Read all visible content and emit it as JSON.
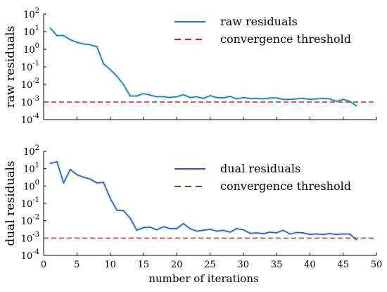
{
  "chart_data": [
    {
      "type": "line",
      "ylabel": "raw residuals",
      "yscale": "log",
      "ylim": [
        0.0001,
        100
      ],
      "xlim": [
        0,
        50
      ],
      "x_tick_labels_shown": false,
      "y_ticks": [
        {
          "value": 100,
          "mantissa": "10",
          "exp": "2"
        },
        {
          "value": 10,
          "mantissa": "10",
          "exp": "1"
        },
        {
          "value": 1,
          "mantissa": "10",
          "exp": "0"
        },
        {
          "value": 0.1,
          "mantissa": "10",
          "exp": "-1"
        },
        {
          "value": 0.01,
          "mantissa": "10",
          "exp": "-2"
        },
        {
          "value": 0.001,
          "mantissa": "10",
          "exp": "-3"
        },
        {
          "value": 0.0001,
          "mantissa": "10",
          "exp": "-4"
        }
      ],
      "legend_position": "top-right",
      "series": [
        {
          "name": "raw residuals",
          "color": "#1f77b4",
          "style": "solid",
          "x": [
            1,
            2,
            3,
            4,
            5,
            6,
            7,
            8,
            9,
            10,
            11,
            12,
            13,
            14,
            15,
            16,
            17,
            18,
            19,
            20,
            21,
            22,
            23,
            24,
            25,
            26,
            27,
            28,
            29,
            30,
            31,
            32,
            33,
            34,
            35,
            36,
            37,
            38,
            39,
            40,
            41,
            42,
            43,
            44,
            45,
            46,
            47
          ],
          "y": [
            16,
            6,
            6,
            3.5,
            2.5,
            2,
            1.8,
            1.4,
            0.15,
            0.07,
            0.03,
            0.01,
            0.0022,
            0.0022,
            0.003,
            0.0025,
            0.002,
            0.002,
            0.0018,
            0.002,
            0.0026,
            0.0018,
            0.002,
            0.0016,
            0.0023,
            0.0018,
            0.0017,
            0.0021,
            0.0015,
            0.0018,
            0.0016,
            0.0016,
            0.0015,
            0.0017,
            0.0017,
            0.0014,
            0.0014,
            0.0015,
            0.0016,
            0.0014,
            0.0015,
            0.0016,
            0.0015,
            0.0011,
            0.0014,
            0.0011,
            0.0006
          ]
        },
        {
          "name": "convergence threshold",
          "color": "#e31a1c",
          "style": "dashed",
          "x": [
            0,
            50
          ],
          "y": [
            0.001,
            0.001
          ]
        }
      ]
    },
    {
      "type": "line",
      "ylabel": "dual residuals",
      "xlabel": "number of iterations",
      "yscale": "log",
      "ylim": [
        0.0001,
        100
      ],
      "xlim": [
        0,
        50
      ],
      "x_ticks": [
        0,
        5,
        10,
        15,
        20,
        25,
        30,
        35,
        40,
        45,
        50
      ],
      "y_ticks": [
        {
          "value": 100,
          "mantissa": "10",
          "exp": "2"
        },
        {
          "value": 10,
          "mantissa": "10",
          "exp": "1"
        },
        {
          "value": 1,
          "mantissa": "10",
          "exp": "0"
        },
        {
          "value": 0.1,
          "mantissa": "10",
          "exp": "-1"
        },
        {
          "value": 0.01,
          "mantissa": "10",
          "exp": "-2"
        },
        {
          "value": 0.001,
          "mantissa": "10",
          "exp": "-3"
        },
        {
          "value": 0.0001,
          "mantissa": "10",
          "exp": "-4"
        }
      ],
      "legend_position": "center-right",
      "series": [
        {
          "name": "dual residuals",
          "color": "#3355cc",
          "style": "solid",
          "x": [
            1,
            2,
            3,
            4,
            5,
            6,
            7,
            8,
            9,
            10,
            11,
            12,
            13,
            14,
            15,
            16,
            17,
            18,
            19,
            20,
            21,
            22,
            23,
            24,
            25,
            26,
            27,
            28,
            29,
            30,
            31,
            32,
            33,
            34,
            35,
            36,
            37,
            38,
            39,
            40,
            41,
            42,
            43,
            44,
            45,
            46,
            47
          ],
          "y": [
            20,
            25,
            1.5,
            9,
            4.5,
            3.2,
            2.5,
            1.5,
            1.6,
            0.2,
            0.04,
            0.038,
            0.014,
            0.0028,
            0.004,
            0.0042,
            0.003,
            0.0045,
            0.0035,
            0.0035,
            0.0068,
            0.0035,
            0.0025,
            0.0028,
            0.0032,
            0.0025,
            0.0028,
            0.0022,
            0.0035,
            0.003,
            0.0019,
            0.002,
            0.0018,
            0.0022,
            0.002,
            0.0028,
            0.0017,
            0.0021,
            0.002,
            0.0016,
            0.0017,
            0.0016,
            0.0018,
            0.0016,
            0.0017,
            0.0017,
            0.0008
          ]
        },
        {
          "name": "convergence threshold",
          "color": "#e31a1c",
          "legend_color": "#7a3b10",
          "style": "dashed",
          "x": [
            0,
            50
          ],
          "y": [
            0.001,
            0.001
          ]
        }
      ]
    }
  ]
}
